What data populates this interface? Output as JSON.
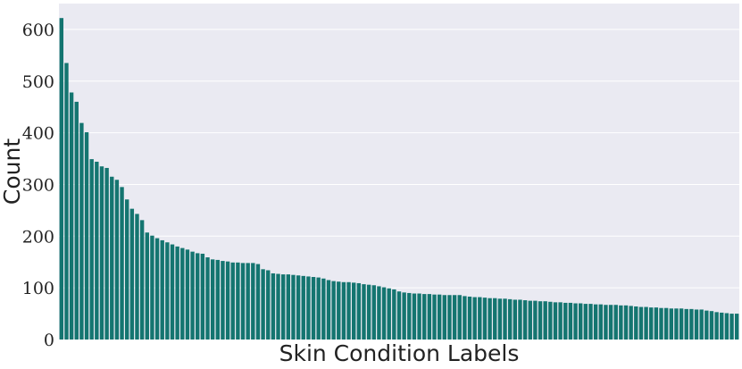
{
  "chart_data": {
    "type": "bar",
    "xlabel": "Skin Condition Labels",
    "ylabel": "Count",
    "ylim": [
      0,
      650
    ],
    "yticks": [
      0,
      100,
      200,
      300,
      400,
      500,
      600
    ],
    "grid": true,
    "bar_color": "#147570",
    "plot_background": "#eaeaf2",
    "values": [
      622,
      535,
      478,
      460,
      419,
      401,
      349,
      344,
      335,
      332,
      315,
      309,
      295,
      271,
      253,
      243,
      231,
      207,
      201,
      196,
      192,
      188,
      184,
      180,
      177,
      174,
      170,
      167,
      166,
      159,
      155,
      154,
      152,
      151,
      149,
      149,
      148,
      148,
      148,
      146,
      136,
      134,
      128,
      127,
      126,
      126,
      125,
      124,
      123,
      122,
      121,
      120,
      118,
      115,
      113,
      112,
      111,
      111,
      110,
      109,
      107,
      106,
      105,
      103,
      101,
      99,
      97,
      93,
      91,
      90,
      89,
      89,
      88,
      88,
      87,
      87,
      86,
      86,
      86,
      86,
      84,
      83,
      82,
      82,
      81,
      80,
      80,
      79,
      79,
      78,
      77,
      77,
      76,
      75,
      75,
      74,
      74,
      73,
      72,
      72,
      71,
      71,
      70,
      70,
      69,
      69,
      68,
      68,
      67,
      67,
      67,
      66,
      66,
      65,
      64,
      63,
      63,
      62,
      62,
      61,
      61,
      60,
      60,
      60,
      59,
      59,
      58,
      58,
      56,
      55,
      53,
      52,
      51,
      50,
      50
    ]
  }
}
